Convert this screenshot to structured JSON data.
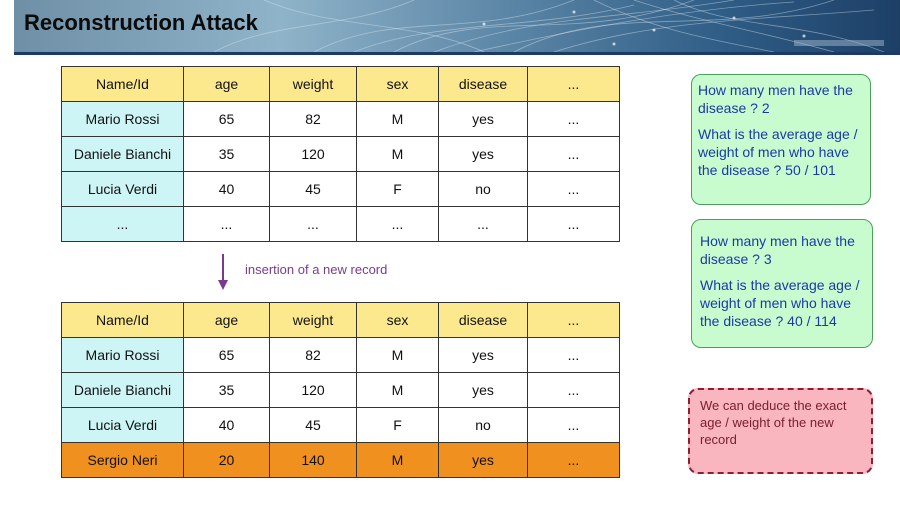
{
  "slide": {
    "title": "Reconstruction Attack"
  },
  "tables": {
    "before": {
      "headers": [
        "Name/Id",
        "age",
        "weight",
        "sex",
        "disease",
        "..."
      ],
      "rows": [
        [
          "Mario Rossi",
          "65",
          "82",
          "M",
          "yes",
          "..."
        ],
        [
          "Daniele Bianchi",
          "35",
          "120",
          "M",
          "yes",
          "..."
        ],
        [
          "Lucia Verdi",
          "40",
          "45",
          "F",
          "no",
          "..."
        ],
        [
          "...",
          "...",
          "...",
          "...",
          "...",
          "..."
        ]
      ]
    },
    "after": {
      "headers": [
        "Name/Id",
        "age",
        "weight",
        "sex",
        "disease",
        "..."
      ],
      "rows": [
        [
          "Mario Rossi",
          "65",
          "82",
          "M",
          "yes",
          "..."
        ],
        [
          "Daniele Bianchi",
          "35",
          "120",
          "M",
          "yes",
          "..."
        ],
        [
          "Lucia Verdi",
          "40",
          "45",
          "F",
          "no",
          "..."
        ],
        [
          "Sergio Neri",
          "20",
          "140",
          "M",
          "yes",
          "..."
        ]
      ]
    }
  },
  "transition": {
    "label": "insertion of a new record"
  },
  "boxes": {
    "before": {
      "q1": "How many men have the disease ?  2",
      "q2": "What is the average age / weight of men who have the disease ?  50 / 101"
    },
    "after": {
      "q1": "How many men have the disease ?  3",
      "q2": "What is the average age / weight of men who have the disease ?  40 / 114"
    },
    "conclusion": "We can deduce the exact age / weight of the new record"
  },
  "colors": {
    "header_fill": "#fce98e",
    "name_fill": "#cdf5f5",
    "new_record_fill": "#f0901e",
    "query_box_fill": "#c8fccf",
    "conclusion_fill": "#f9b6bf",
    "arrow": "#7a3b8e"
  }
}
